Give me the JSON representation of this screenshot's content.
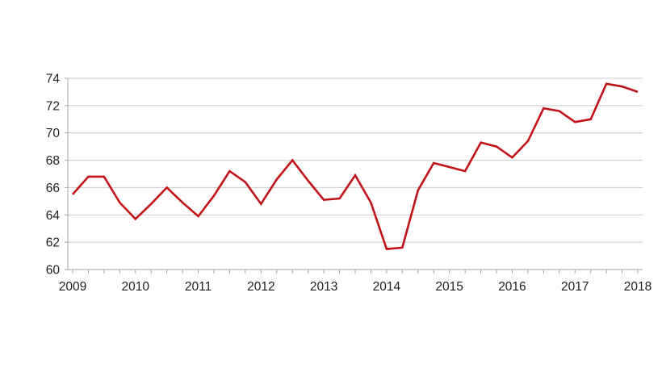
{
  "chart_data": {
    "type": "line",
    "title": "",
    "xlabel": "",
    "ylabel": "",
    "legend": "none",
    "grid": "horizontal",
    "xlim": [
      2009,
      2018
    ],
    "ylim": [
      60,
      74
    ],
    "y_ticks": [
      60,
      62,
      64,
      66,
      68,
      70,
      72,
      74
    ],
    "y_tick_labels": [
      "60",
      "62",
      "64",
      "66",
      "68",
      "70",
      "72",
      "74"
    ],
    "x_tick_years": [
      2009,
      2010,
      2011,
      2012,
      2013,
      2014,
      2015,
      2016,
      2017,
      2018
    ],
    "x_tick_labels": [
      "2009",
      "2010",
      "2011",
      "2012",
      "2013",
      "2014",
      "2015",
      "2016",
      "2017",
      "2018"
    ],
    "minor_x_tick_step": 0.25,
    "series": [
      {
        "name": "",
        "color": "#c11218",
        "x": [
          2009.0,
          2009.25,
          2009.5,
          2009.75,
          2010.0,
          2010.25,
          2010.5,
          2010.75,
          2011.0,
          2011.25,
          2011.5,
          2011.75,
          2012.0,
          2012.25,
          2012.5,
          2012.75,
          2013.0,
          2013.25,
          2013.5,
          2013.75,
          2014.0,
          2014.25,
          2014.5,
          2014.75,
          2015.0,
          2015.25,
          2015.5,
          2015.75,
          2016.0,
          2016.25,
          2016.5,
          2016.75,
          2017.0,
          2017.25,
          2017.5,
          2017.75,
          2018.0
        ],
        "values": [
          65.5,
          66.8,
          66.8,
          64.9,
          63.7,
          64.8,
          66.0,
          64.9,
          63.9,
          65.4,
          67.2,
          66.4,
          64.8,
          66.6,
          68.0,
          66.5,
          65.1,
          65.2,
          66.9,
          64.9,
          61.5,
          61.6,
          65.8,
          67.8,
          67.5,
          67.2,
          69.3,
          69.0,
          68.2,
          69.4,
          71.8,
          71.6,
          70.8,
          71.0,
          73.6,
          73.4,
          73.0
        ]
      }
    ],
    "colors": {
      "line": "#c11218",
      "gridline": "#c9c9c9",
      "axis": "#a6a6a6",
      "tick_label": "#1f1f1f",
      "background": "#ffffff"
    }
  }
}
